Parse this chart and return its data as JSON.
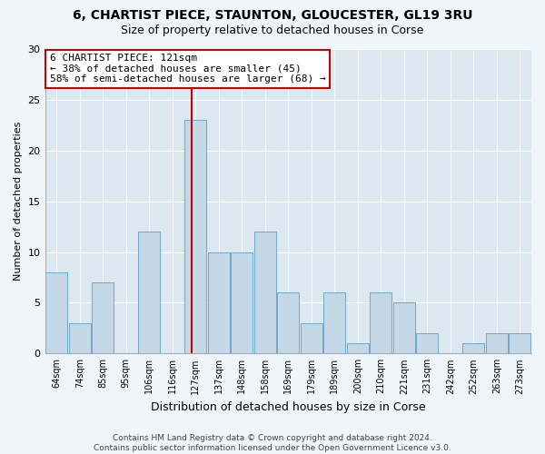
{
  "title": "6, CHARTIST PIECE, STAUNTON, GLOUCESTER, GL19 3RU",
  "subtitle": "Size of property relative to detached houses in Corse",
  "xlabel": "Distribution of detached houses by size in Corse",
  "ylabel": "Number of detached properties",
  "categories": [
    "64sqm",
    "74sqm",
    "85sqm",
    "95sqm",
    "106sqm",
    "116sqm",
    "127sqm",
    "137sqm",
    "148sqm",
    "158sqm",
    "169sqm",
    "179sqm",
    "189sqm",
    "200sqm",
    "210sqm",
    "221sqm",
    "231sqm",
    "242sqm",
    "252sqm",
    "263sqm",
    "273sqm"
  ],
  "values": [
    8,
    3,
    7,
    0,
    12,
    0,
    23,
    10,
    10,
    12,
    6,
    3,
    6,
    1,
    6,
    5,
    2,
    0,
    1,
    2,
    2
  ],
  "bar_color": "#c5d8e8",
  "bar_edge_color": "#6fa8c8",
  "marker_index": 6.0,
  "marker_color": "#cc0000",
  "annotation_text": "6 CHARTIST PIECE: 121sqm\n← 38% of detached houses are smaller (45)\n58% of semi-detached houses are larger (68) →",
  "annotation_box_color": "#ffffff",
  "annotation_box_edge_color": "#cc0000",
  "ylim": [
    0,
    30
  ],
  "yticks": [
    0,
    5,
    10,
    15,
    20,
    25,
    30
  ],
  "bar_bg_color": "#dce8f0",
  "fig_bg_color": "#f0f5f9",
  "footer_text": "Contains HM Land Registry data © Crown copyright and database right 2024.\nContains public sector information licensed under the Open Government Licence v3.0."
}
